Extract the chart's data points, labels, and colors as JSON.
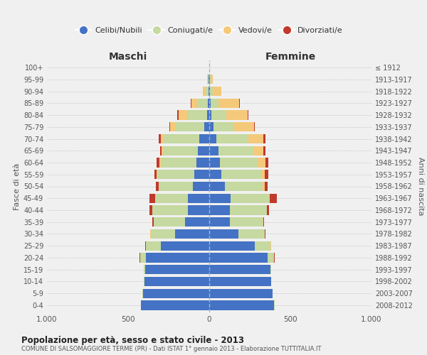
{
  "age_groups": [
    "0-4",
    "5-9",
    "10-14",
    "15-19",
    "20-24",
    "25-29",
    "30-34",
    "35-39",
    "40-44",
    "45-49",
    "50-54",
    "55-59",
    "60-64",
    "65-69",
    "70-74",
    "75-79",
    "80-84",
    "85-89",
    "90-94",
    "95-99",
    "100+"
  ],
  "birth_years": [
    "2008-2012",
    "2003-2007",
    "1998-2002",
    "1993-1997",
    "1988-1992",
    "1983-1987",
    "1978-1982",
    "1973-1977",
    "1968-1972",
    "1963-1967",
    "1958-1962",
    "1953-1957",
    "1948-1952",
    "1943-1947",
    "1938-1942",
    "1933-1937",
    "1928-1932",
    "1923-1927",
    "1918-1922",
    "1913-1917",
    "≤ 1912"
  ],
  "colors": {
    "celibi": "#4472C4",
    "coniugati": "#C5D9A0",
    "vedovi": "#F5C97A",
    "divorziati": "#C0392B"
  },
  "maschi": {
    "celibi": [
      420,
      410,
      400,
      395,
      390,
      300,
      210,
      150,
      130,
      130,
      100,
      90,
      80,
      70,
      60,
      30,
      15,
      8,
      5,
      3,
      2
    ],
    "coniugati": [
      2,
      3,
      5,
      8,
      35,
      90,
      150,
      190,
      220,
      200,
      210,
      230,
      220,
      210,
      220,
      175,
      120,
      60,
      20,
      5,
      0
    ],
    "vedovi": [
      0,
      0,
      0,
      0,
      2,
      2,
      2,
      2,
      2,
      2,
      2,
      3,
      5,
      12,
      20,
      35,
      55,
      40,
      15,
      5,
      0
    ],
    "divorziati": [
      0,
      0,
      0,
      0,
      2,
      2,
      3,
      8,
      18,
      35,
      18,
      15,
      20,
      12,
      10,
      7,
      7,
      5,
      0,
      0,
      0
    ]
  },
  "femmine": {
    "celibi": [
      400,
      390,
      380,
      375,
      360,
      280,
      180,
      125,
      125,
      130,
      95,
      75,
      65,
      55,
      45,
      25,
      15,
      8,
      5,
      3,
      1
    ],
    "coniugati": [
      2,
      2,
      2,
      8,
      38,
      98,
      160,
      205,
      230,
      240,
      235,
      245,
      235,
      215,
      195,
      130,
      90,
      50,
      15,
      5,
      0
    ],
    "vedovi": [
      0,
      0,
      0,
      0,
      2,
      2,
      2,
      2,
      2,
      3,
      10,
      22,
      45,
      65,
      95,
      120,
      130,
      125,
      55,
      12,
      0
    ],
    "divorziati": [
      0,
      0,
      0,
      0,
      2,
      2,
      3,
      5,
      12,
      42,
      20,
      22,
      20,
      10,
      10,
      7,
      7,
      5,
      0,
      0,
      0
    ]
  },
  "title": "Popolazione per età, sesso e stato civile - 2013",
  "subtitle": "COMUNE DI SALSOMAGGIORE TERME (PR) - Dati ISTAT 1° gennaio 2013 - Elaborazione TUTTITALIA.IT",
  "xlabel_left": "Maschi",
  "xlabel_right": "Femmine",
  "ylabel_left": "Fasce di età",
  "ylabel_right": "Anni di nascita",
  "xlim": 1000,
  "legend_labels": [
    "Celibi/Nubili",
    "Coniugati/e",
    "Vedovi/e",
    "Divorziati/e"
  ],
  "bg_color": "#F0F0F0",
  "grid_color": "#CCCCCC"
}
